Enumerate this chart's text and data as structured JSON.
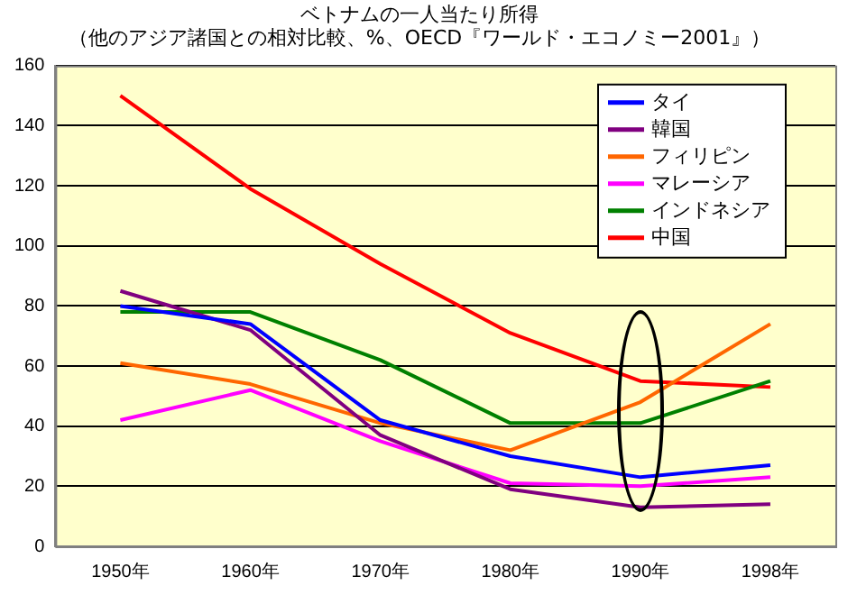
{
  "chart_data": {
    "type": "line",
    "title": "ベトナムの一人当たり所得",
    "subtitle": "（他のアジア諸国との相対比較、%、OECD『ワールド・エコノミー2001』）",
    "categories": [
      "1950年",
      "1960年",
      "1970年",
      "1980年",
      "1990年",
      "1998年"
    ],
    "series": [
      {
        "name": "タイ",
        "color": "#0000ff",
        "values": [
          80,
          74,
          42,
          30,
          23,
          27
        ]
      },
      {
        "name": "韓国",
        "color": "#800080",
        "values": [
          85,
          72,
          37,
          19,
          13,
          14
        ]
      },
      {
        "name": "フィリピン",
        "color": "#ff6600",
        "values": [
          61,
          54,
          41,
          32,
          48,
          74
        ]
      },
      {
        "name": "マレーシア",
        "color": "#ff00ff",
        "values": [
          42,
          52,
          35,
          21,
          20,
          23
        ]
      },
      {
        "name": "インドネシア",
        "color": "#008000",
        "values": [
          78,
          78,
          62,
          41,
          41,
          55
        ]
      },
      {
        "name": "中国",
        "color": "#ff0000",
        "values": [
          150,
          119,
          94,
          71,
          55,
          53
        ]
      }
    ],
    "ylim": [
      0,
      160
    ],
    "yticks": [
      0,
      20,
      40,
      60,
      80,
      100,
      120,
      140,
      160
    ],
    "grid": "y",
    "legend": "top right",
    "marker": "none",
    "line_style": "solid"
  }
}
